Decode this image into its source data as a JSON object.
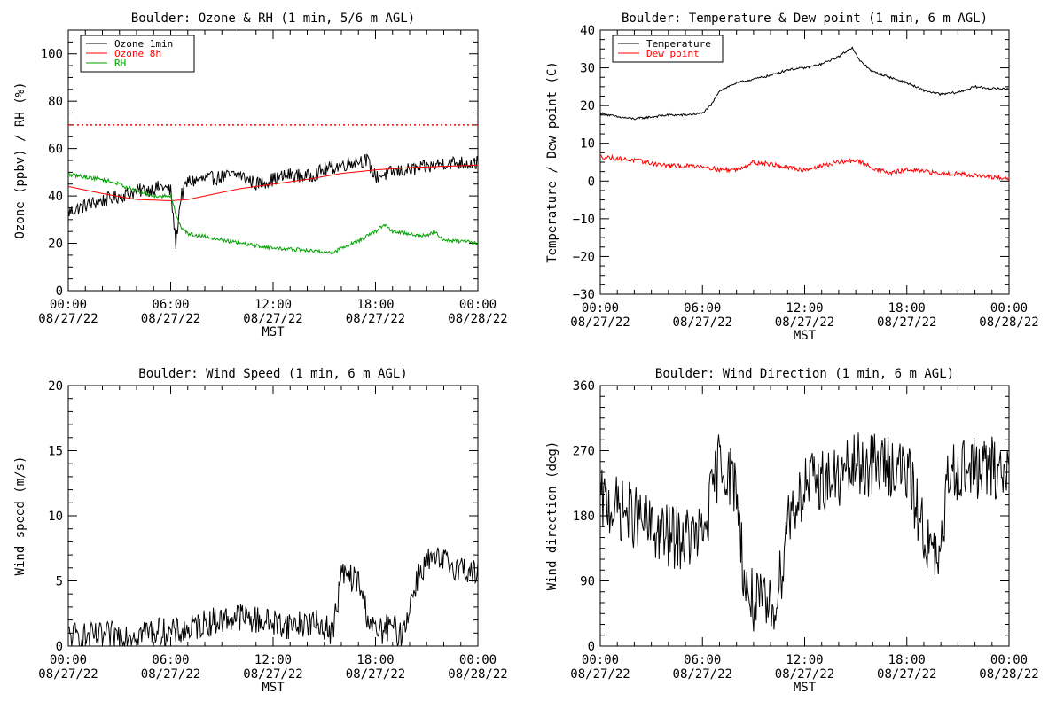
{
  "charts": [
    {
      "title": "Boulder: Ozone & RH (1 min, 5/6 m AGL)",
      "ylabel": "Ozone (ppbv) / RH (%)",
      "xlabel": "MST",
      "yticks": [
        "0",
        "20",
        "40",
        "60",
        "80",
        "100"
      ],
      "xticks": [
        [
          "00:00",
          "08/27/22"
        ],
        [
          "06:00",
          "08/27/22"
        ],
        [
          "12:00",
          "08/27/22"
        ],
        [
          "18:00",
          "08/27/22"
        ],
        [
          "00:00",
          "08/28/22"
        ]
      ],
      "legend": [
        "Ozone 1min",
        "Ozone 8h",
        "RH"
      ]
    },
    {
      "title": "Boulder: Temperature & Dew point (1 min, 6 m AGL)",
      "ylabel": "Temperature / Dew point (C)",
      "xlabel": "MST",
      "yticks": [
        "−30",
        "−20",
        "−10",
        "0",
        "10",
        "20",
        "30",
        "40"
      ],
      "xticks": [
        [
          "00:00",
          "08/27/22"
        ],
        [
          "06:00",
          "08/27/22"
        ],
        [
          "12:00",
          "08/27/22"
        ],
        [
          "18:00",
          "08/27/22"
        ],
        [
          "00:00",
          "08/28/22"
        ]
      ],
      "legend": [
        "Temperature",
        "Dew point"
      ]
    },
    {
      "title": "Boulder: Wind Speed (1 min, 6 m AGL)",
      "ylabel": "Wind speed (m/s)",
      "xlabel": "MST",
      "yticks": [
        "0",
        "5",
        "10",
        "15",
        "20"
      ],
      "xticks": [
        [
          "00:00",
          "08/27/22"
        ],
        [
          "06:00",
          "08/27/22"
        ],
        [
          "12:00",
          "08/27/22"
        ],
        [
          "18:00",
          "08/27/22"
        ],
        [
          "00:00",
          "08/28/22"
        ]
      ],
      "legend": []
    },
    {
      "title": "Boulder: Wind Direction (1 min, 6 m AGL)",
      "ylabel": "Wind direction (deg)",
      "xlabel": "MST",
      "yticks": [
        "0",
        "90",
        "180",
        "270",
        "360"
      ],
      "xticks": [
        [
          "00:00",
          "08/27/22"
        ],
        [
          "06:00",
          "08/27/22"
        ],
        [
          "12:00",
          "08/27/22"
        ],
        [
          "18:00",
          "08/27/22"
        ],
        [
          "00:00",
          "08/28/22"
        ]
      ],
      "legend": []
    }
  ],
  "chart_data": [
    {
      "type": "line",
      "title": "Boulder: Ozone & RH (1 min, 5/6 m AGL)",
      "xlabel": "MST",
      "ylabel": "Ozone (ppbv) / RH (%)",
      "xlim": [
        0,
        24
      ],
      "ylim": [
        0,
        110
      ],
      "x_unit": "hours since 08/27/22 00:00 MST",
      "reference_lines": [
        {
          "y": 70,
          "color": "#ff0000",
          "style": "dotted"
        }
      ],
      "series": [
        {
          "name": "Ozone 1min",
          "color": "#000000",
          "noise": 3,
          "x": [
            0,
            1,
            2,
            3,
            4,
            5,
            5.5,
            6,
            6.3,
            6.6,
            7,
            8,
            9,
            10,
            11,
            12,
            13,
            14,
            15,
            16,
            17,
            17.5,
            18,
            19,
            20,
            21,
            22,
            23,
            24
          ],
          "y": [
            33,
            36,
            38,
            40,
            42,
            43,
            44,
            42,
            20,
            40,
            46,
            47,
            48,
            49,
            45,
            47,
            49,
            48,
            51,
            53,
            55,
            55,
            48,
            50,
            51,
            52,
            54,
            54,
            54
          ]
        },
        {
          "name": "Ozone 8h",
          "color": "#ff0000",
          "noise": 0,
          "x": [
            0,
            2,
            4,
            6,
            7,
            8,
            10,
            12,
            14,
            16,
            18,
            20,
            22,
            24
          ],
          "y": [
            44,
            41,
            38.5,
            38,
            38.5,
            40,
            43,
            45,
            47,
            49.5,
            51,
            52,
            52.5,
            53
          ]
        },
        {
          "name": "RH",
          "color": "#00a000",
          "noise": 0.8,
          "x": [
            0,
            1,
            2,
            3,
            4,
            5,
            6,
            6.5,
            7,
            8,
            10,
            12,
            14,
            15.5,
            16,
            17,
            18,
            18.5,
            19,
            20,
            21,
            21.5,
            22,
            23,
            24
          ],
          "y": [
            49,
            48,
            47,
            45,
            42,
            40,
            40,
            28,
            24,
            23,
            20,
            18,
            17,
            16,
            18,
            21,
            25,
            28,
            25,
            24,
            23,
            25,
            21,
            21,
            20
          ]
        }
      ]
    },
    {
      "type": "line",
      "title": "Boulder: Temperature & Dew point (1 min, 6 m AGL)",
      "xlabel": "MST",
      "ylabel": "Temperature / Dew point (C)",
      "xlim": [
        0,
        24
      ],
      "ylim": [
        -30,
        40
      ],
      "x_unit": "hours since 08/27/22 00:00 MST",
      "series": [
        {
          "name": "Temperature",
          "color": "#000000",
          "noise": 0.3,
          "x": [
            0,
            1,
            2,
            3,
            4,
            5,
            6,
            6.5,
            7,
            8,
            9,
            10,
            11,
            12,
            13,
            14,
            14.8,
            15.2,
            16,
            17,
            18,
            19,
            20,
            21,
            22,
            23,
            24
          ],
          "y": [
            18,
            17,
            16.5,
            17,
            17.5,
            17.5,
            18,
            20,
            24,
            26,
            27,
            28,
            29.5,
            30,
            31,
            33,
            35.5,
            32,
            29,
            27.5,
            26,
            24,
            23,
            23.5,
            25,
            24.5,
            24.5
          ]
        },
        {
          "name": "Dew point",
          "color": "#ff0000",
          "noise": 0.6,
          "x": [
            0,
            2,
            4,
            6,
            7,
            8,
            9,
            10,
            11,
            12,
            13,
            14,
            15,
            16,
            17,
            18,
            19,
            20,
            21,
            22,
            23,
            24
          ],
          "y": [
            6.5,
            5.5,
            4,
            4,
            3,
            3,
            5,
            4.5,
            3.5,
            3,
            4,
            5,
            5.5,
            3.5,
            2,
            3,
            2.5,
            2,
            2,
            1.5,
            1,
            0.5
          ]
        }
      ]
    },
    {
      "type": "line",
      "title": "Boulder: Wind Speed (1 min, 6 m AGL)",
      "xlabel": "MST",
      "ylabel": "Wind speed (m/s)",
      "xlim": [
        0,
        24
      ],
      "ylim": [
        0,
        20
      ],
      "x_unit": "hours since 08/27/22 00:00 MST",
      "series": [
        {
          "name": "",
          "color": "#000000",
          "noise": 1.1,
          "floor": 0,
          "x": [
            0,
            1,
            2,
            3,
            4,
            5,
            6,
            7,
            8,
            9,
            10,
            11,
            12,
            13,
            14,
            15,
            15.5,
            16,
            17,
            17.5,
            18,
            19,
            19.5,
            20,
            20.5,
            21,
            22,
            23,
            24
          ],
          "y": [
            0.8,
            0.7,
            0.7,
            0.9,
            1.0,
            1.2,
            1.0,
            1.2,
            1.8,
            2.0,
            2.3,
            2.0,
            1.8,
            1.6,
            1.8,
            1.6,
            1.0,
            5.5,
            5.0,
            2.5,
            1.0,
            1.5,
            0.8,
            3.0,
            5.5,
            6.5,
            6.5,
            6.0,
            5.5
          ]
        }
      ]
    },
    {
      "type": "line",
      "title": "Boulder: Wind Direction (1 min, 6 m AGL)",
      "xlabel": "MST",
      "ylabel": "Wind direction (deg)",
      "xlim": [
        0,
        24
      ],
      "ylim": [
        0,
        360
      ],
      "x_unit": "hours since 08/27/22 00:00 MST",
      "series": [
        {
          "name": "",
          "color": "#000000",
          "noise": 45,
          "floor": 0,
          "ceil": 360,
          "x": [
            0,
            1,
            2,
            3,
            4,
            5,
            6,
            6.5,
            7,
            8,
            8.5,
            9,
            10,
            10.5,
            11,
            12,
            13,
            14,
            15,
            16,
            17,
            18,
            19,
            19.5,
            20,
            20.5,
            21,
            22,
            23,
            24
          ],
          "y": [
            200,
            190,
            180,
            160,
            150,
            150,
            150,
            200,
            260,
            220,
            80,
            60,
            50,
            80,
            180,
            220,
            230,
            230,
            250,
            250,
            250,
            240,
            160,
            120,
            120,
            250,
            245,
            245,
            245,
            240
          ]
        }
      ]
    }
  ]
}
